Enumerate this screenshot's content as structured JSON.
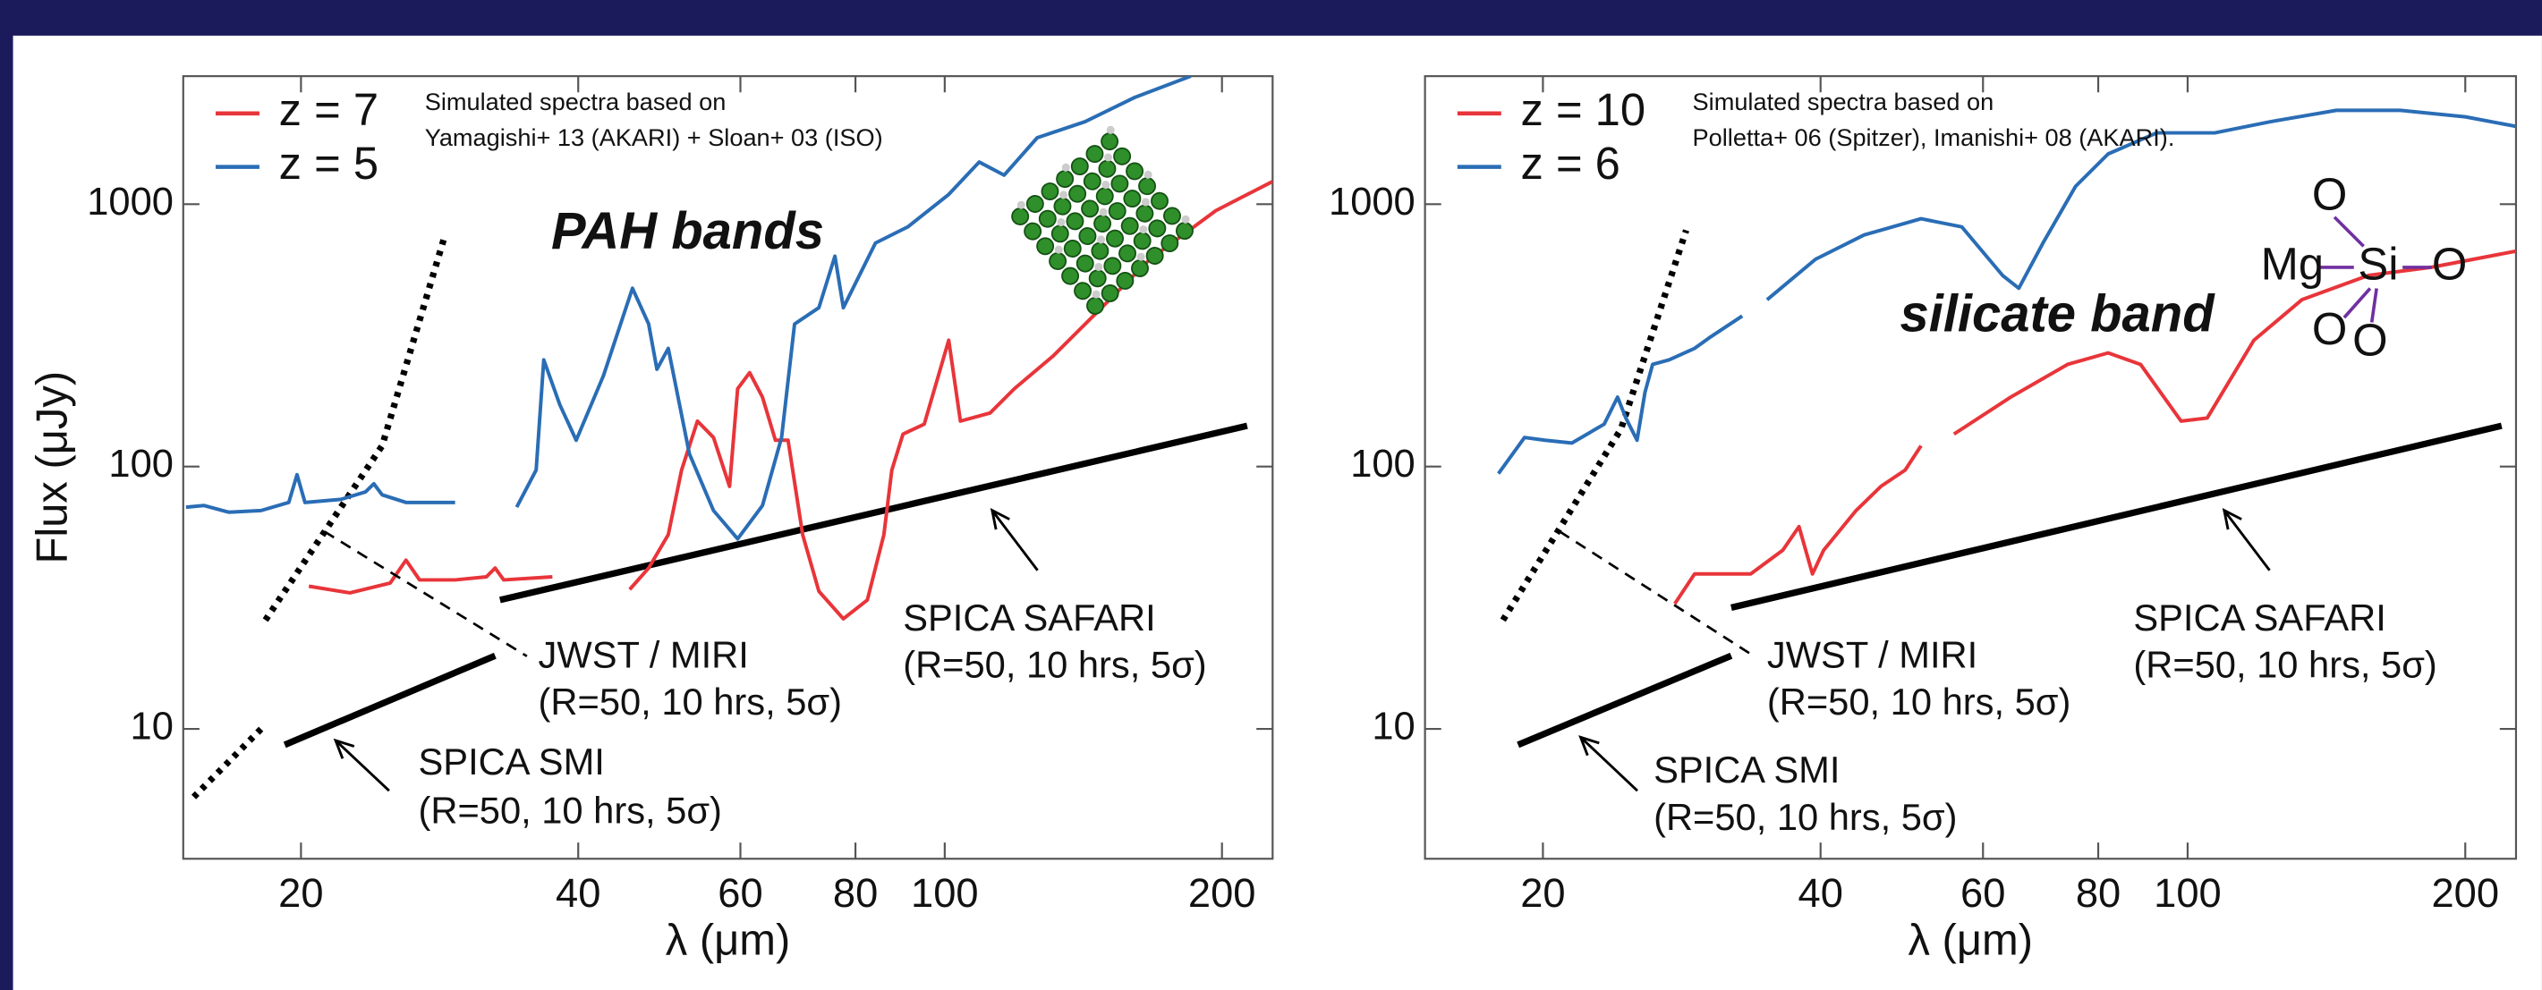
{
  "chart_data": [
    {
      "type": "line",
      "xlabel": "λ (μm)",
      "ylabel": "Flux (μJy)",
      "xscale": "log",
      "yscale": "log",
      "xlim": [
        14.9,
        227
      ],
      "ylim": [
        3.2,
        3076
      ],
      "xticks": [
        20,
        40,
        60,
        80,
        100,
        200
      ],
      "yticks": [
        10,
        100,
        1000
      ],
      "series": [
        {
          "name": "z = 7",
          "color": "#e8353a",
          "x": [
            20.4,
            22.6,
            25,
            26,
            26.9,
            29.4,
            31.8,
            32.5,
            33.2,
            37.5,
            null,
            45.5,
            47.7,
            50.1,
            51.8,
            53.9,
            56.1,
            58.4,
            59.6,
            61.4,
            63.4,
            65.5,
            67.6,
            70.1,
            73,
            77.6,
            82.4,
            85.9,
            87.6,
            90.1,
            95,
            101,
            104,
            112,
            119,
            131,
            148,
            167,
            197,
            227
          ],
          "y": [
            35,
            33,
            36,
            44,
            37,
            37,
            38,
            41,
            37,
            38,
            null,
            34,
            41,
            55,
            97,
            149,
            129,
            84,
            198,
            228,
            184,
            126,
            126,
            55,
            33.5,
            26.3,
            31,
            55,
            97,
            133,
            145,
            303,
            149,
            160,
            198,
            263,
            403,
            617,
            945,
            1220
          ]
        },
        {
          "name": "z = 5",
          "color": "#2a6db5",
          "x": [
            15,
            15.7,
            16.7,
            18.1,
            19.4,
            19.8,
            20.2,
            22.1,
            23.5,
            24,
            24.5,
            26,
            29.4,
            null,
            34.3,
            36,
            36.7,
            38.2,
            39.8,
            42.6,
            45.8,
            47.7,
            48.7,
            50.1,
            52.8,
            56.1,
            59.6,
            63.4,
            66.5,
            68.7,
            73,
            76,
            77.6,
            84.1,
            91.2,
            101,
            109,
            116,
            126,
            142,
            161,
            185
          ],
          "y": [
            70,
            71,
            67,
            68,
            73,
            93,
            73,
            75,
            80,
            86,
            78,
            73,
            73,
            null,
            70,
            97,
            255,
            172,
            126,
            222,
            478,
            349,
            235,
            282,
            112,
            68,
            53,
            71,
            129,
            349,
            403,
            634,
            403,
            711,
            820,
            1089,
            1447,
            1291,
            1791,
            2063,
            2556,
            3076
          ]
        }
      ],
      "lines": [
        {
          "style": "dotted",
          "x": [
            18.3,
            24.5,
            28.6,
            null,
            15.3,
            18.1
          ],
          "y": [
            26,
            120,
            742,
            null,
            5.5,
            10
          ]
        },
        {
          "style": "solid",
          "x": [
            19.2,
            32.5
          ],
          "y": [
            8.7,
            19
          ]
        },
        {
          "style": "solid",
          "x": [
            32.9,
            213
          ],
          "y": [
            31,
            143
          ]
        }
      ],
      "annotations": [
        "Simulated spectra based on",
        "Yamagishi+ 13 (AKARI) + Sloan+ 03 (ISO)",
        "PAH bands",
        "JWST / MIRI",
        "(R=50, 10 hrs, 5σ)",
        "SPICA SAFARI",
        "(R=50, 10 hrs, 5σ)",
        "SPICA SMI",
        "(R=50, 10 hrs, 5σ)"
      ]
    },
    {
      "type": "line",
      "xlabel": "λ (μm)",
      "xscale": "log",
      "yscale": "log",
      "xlim": [
        14.9,
        227
      ],
      "ylim": [
        3.2,
        3076
      ],
      "xticks": [
        20,
        40,
        60,
        80,
        100,
        200
      ],
      "yticks": [
        10,
        100,
        1000
      ],
      "series": [
        {
          "name": "z = 10",
          "color": "#e8353a",
          "x": [
            27.8,
            29.2,
            33.6,
            36.4,
            37.9,
            39.2,
            40.3,
            43.7,
            46.5,
            49.4,
            51.4,
            null,
            55.8,
            64.3,
            74.1,
            82,
            88.9,
            98.4,
            105,
            118,
            133,
            157,
            184,
            227
          ],
          "y": [
            30,
            39,
            39,
            48,
            59,
            39,
            48,
            68,
            84,
            97,
            120,
            null,
            133,
            184,
            245,
            271,
            245,
            149,
            153,
            303,
            432,
            535,
            575,
            662
          ]
        },
        {
          "name": "z = 6",
          "color": "#2a6db5",
          "x": [
            17.9,
            19.1,
            20.1,
            21.5,
            23.3,
            24.1,
            24.6,
            25.3,
            25.8,
            26.3,
            27.4,
            29.2,
            30.4,
            32.9,
            null,
            35,
            39.5,
            44.6,
            51.4,
            56.9,
            63,
            65.6,
            69.7,
            75.6,
            82,
            92.6,
            107,
            123,
            145,
            170,
            200,
            227
          ],
          "y": [
            94,
            129,
            126,
            123,
            145,
            184,
            153,
            126,
            192,
            245,
            255,
            282,
            312,
            375,
            null,
            432,
            617,
            763,
            880,
            820,
            535,
            478,
            711,
            1169,
            1554,
            1870,
            1870,
            2063,
            2280,
            2280,
            2153,
            1980
          ]
        }
      ],
      "lines": [
        {
          "style": "dotted",
          "x": [
            18.1,
            24.3,
            28.6
          ],
          "y": [
            26,
            139,
            796
          ]
        },
        {
          "style": "solid",
          "x": [
            18.8,
            32
          ],
          "y": [
            8.7,
            19
          ]
        },
        {
          "style": "solid",
          "x": [
            32,
            219
          ],
          "y": [
            29,
            143
          ]
        }
      ],
      "annotations": [
        "Simulated spectra based on",
        "Polletta+ 06 (Spitzer), Imanishi+ 08 (AKARI).",
        "silicate band",
        "JWST / MIRI",
        "(R=50, 10 hrs, 5σ)",
        "SPICA SAFARI",
        "(R=50, 10 hrs, 5σ)",
        "SPICA SMI",
        "(R=50, 10 hrs, 5σ)"
      ],
      "formula": [
        "O",
        "Mg",
        "Si",
        "O",
        "O",
        "O"
      ]
    }
  ]
}
